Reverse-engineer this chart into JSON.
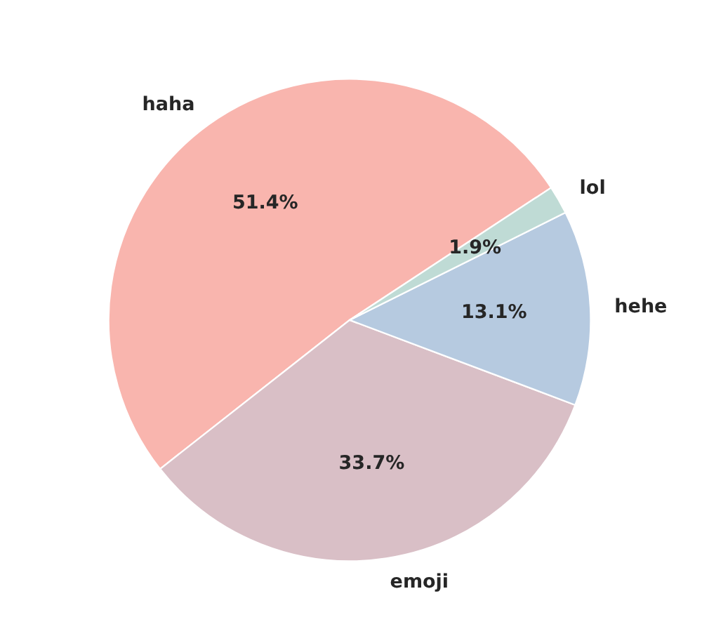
{
  "chart_data": {
    "type": "pie",
    "categories": [
      "haha",
      "emoji",
      "hehe",
      "lol"
    ],
    "values": [
      51.4,
      33.7,
      13.1,
      1.9
    ],
    "colors": [
      "#f9b5ae",
      "#d9bfc6",
      "#b6cae0",
      "#bfdbd5"
    ],
    "value_labels": [
      "51.4%",
      "33.7%",
      "13.1%",
      "1.9%"
    ]
  }
}
